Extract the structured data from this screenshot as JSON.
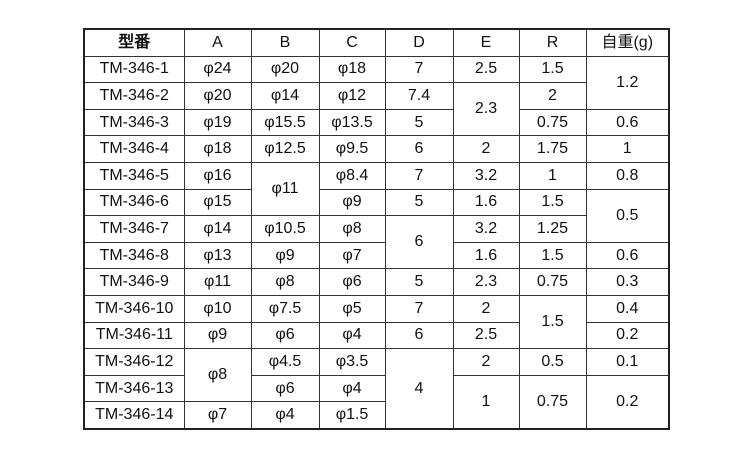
{
  "headers": [
    "型番",
    "A",
    "B",
    "C",
    "D",
    "E",
    "R",
    "自重(g)"
  ],
  "rows": [
    [
      {
        "v": "TM-346-1"
      },
      {
        "v": "φ24"
      },
      {
        "v": "φ20"
      },
      {
        "v": "φ18"
      },
      {
        "v": "7"
      },
      {
        "v": "2.5"
      },
      {
        "v": "1.5"
      },
      {
        "v": "1.2",
        "rs": 2
      }
    ],
    [
      {
        "v": "TM-346-2"
      },
      {
        "v": "φ20"
      },
      {
        "v": "φ14"
      },
      {
        "v": "φ12"
      },
      {
        "v": "7.4"
      },
      {
        "v": "2.3",
        "rs": 2
      },
      {
        "v": "2"
      }
    ],
    [
      {
        "v": "TM-346-3"
      },
      {
        "v": "φ19"
      },
      {
        "v": "φ15.5"
      },
      {
        "v": "φ13.5"
      },
      {
        "v": "5"
      },
      {
        "v": "0.75"
      },
      {
        "v": "0.6"
      }
    ],
    [
      {
        "v": "TM-346-4"
      },
      {
        "v": "φ18"
      },
      {
        "v": "φ12.5"
      },
      {
        "v": "φ9.5"
      },
      {
        "v": "6"
      },
      {
        "v": "2"
      },
      {
        "v": "1.75"
      },
      {
        "v": "1"
      }
    ],
    [
      {
        "v": "TM-346-5"
      },
      {
        "v": "φ16"
      },
      {
        "v": "φ11",
        "rs": 2
      },
      {
        "v": "φ8.4"
      },
      {
        "v": "7"
      },
      {
        "v": "3.2"
      },
      {
        "v": "1"
      },
      {
        "v": "0.8"
      }
    ],
    [
      {
        "v": "TM-346-6"
      },
      {
        "v": "φ15"
      },
      {
        "v": "φ9"
      },
      {
        "v": "5"
      },
      {
        "v": "1.6"
      },
      {
        "v": "1.5"
      },
      {
        "v": "0.5",
        "rs": 2
      }
    ],
    [
      {
        "v": "TM-346-7"
      },
      {
        "v": "φ14"
      },
      {
        "v": "φ10.5"
      },
      {
        "v": "φ8"
      },
      {
        "v": "6",
        "rs": 2
      },
      {
        "v": "3.2"
      },
      {
        "v": "1.25"
      }
    ],
    [
      {
        "v": "TM-346-8"
      },
      {
        "v": "φ13"
      },
      {
        "v": "φ9"
      },
      {
        "v": "φ7"
      },
      {
        "v": "1.6"
      },
      {
        "v": "1.5"
      },
      {
        "v": "0.6"
      }
    ],
    [
      {
        "v": "TM-346-9"
      },
      {
        "v": "φ11"
      },
      {
        "v": "φ8"
      },
      {
        "v": "φ6"
      },
      {
        "v": "5"
      },
      {
        "v": "2.3"
      },
      {
        "v": "0.75"
      },
      {
        "v": "0.3"
      }
    ],
    [
      {
        "v": "TM-346-10"
      },
      {
        "v": "φ10"
      },
      {
        "v": "φ7.5"
      },
      {
        "v": "φ5"
      },
      {
        "v": "7"
      },
      {
        "v": "2"
      },
      {
        "v": "1.5",
        "rs": 2
      },
      {
        "v": "0.4"
      }
    ],
    [
      {
        "v": "TM-346-11"
      },
      {
        "v": "φ9"
      },
      {
        "v": "φ6"
      },
      {
        "v": "φ4"
      },
      {
        "v": "6"
      },
      {
        "v": "2.5"
      },
      {
        "v": "0.2"
      }
    ],
    [
      {
        "v": "TM-346-12"
      },
      {
        "v": "φ8",
        "rs": 2
      },
      {
        "v": "φ4.5"
      },
      {
        "v": "φ3.5"
      },
      {
        "v": "4",
        "rs": 3
      },
      {
        "v": "2"
      },
      {
        "v": "0.5"
      },
      {
        "v": "0.1"
      }
    ],
    [
      {
        "v": "TM-346-13"
      },
      {
        "v": "φ6"
      },
      {
        "v": "φ4"
      },
      {
        "v": "1",
        "rs": 2
      },
      {
        "v": "0.75",
        "rs": 2
      },
      {
        "v": "0.2",
        "rs": 2
      }
    ],
    [
      {
        "v": "TM-346-14"
      },
      {
        "v": "φ7"
      },
      {
        "v": "φ4"
      },
      {
        "v": "φ1.5"
      }
    ]
  ]
}
